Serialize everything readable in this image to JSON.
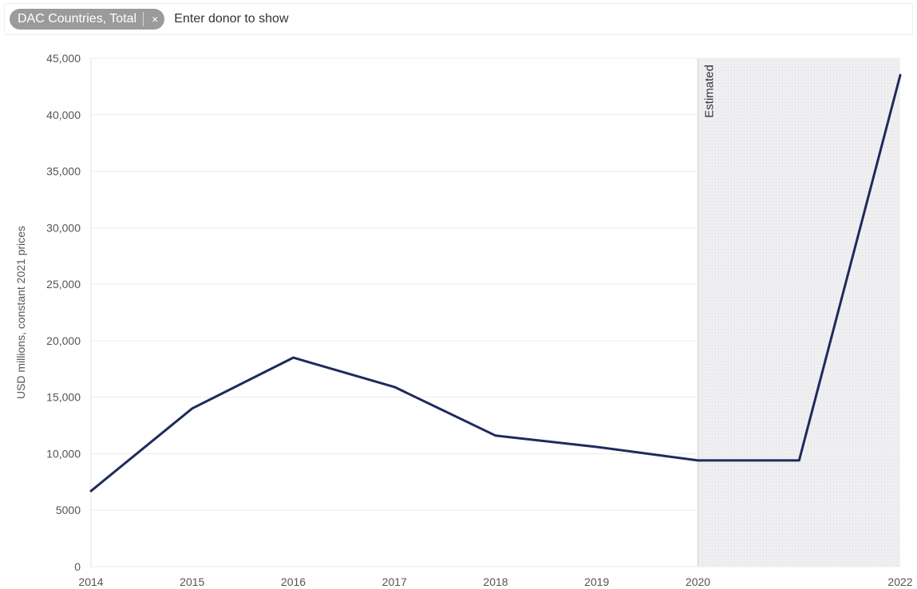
{
  "filter": {
    "selected_chip": "DAC Countries, Total",
    "chip_close": "×",
    "placeholder": "Enter donor to show"
  },
  "chart_data": {
    "type": "line",
    "title": "",
    "xlabel": "",
    "ylabel": "USD millions, constant 2021 prices",
    "x": [
      2014,
      2015,
      2016,
      2017,
      2018,
      2019,
      2020,
      2021,
      2022
    ],
    "x_tick_labels": [
      "2014",
      "2015",
      "2016",
      "2017",
      "2018",
      "2019",
      "2020",
      "2022"
    ],
    "x_tick_values": [
      2014,
      2015,
      2016,
      2017,
      2018,
      2019,
      2020,
      2022
    ],
    "y_tick_labels": [
      "0",
      "5000",
      "10,000",
      "15,000",
      "20,000",
      "25,000",
      "30,000",
      "35,000",
      "40,000",
      "45,000"
    ],
    "y_tick_values": [
      0,
      5000,
      10000,
      15000,
      20000,
      25000,
      30000,
      35000,
      40000,
      45000
    ],
    "xlim": [
      2014,
      2022
    ],
    "ylim": [
      0,
      45000
    ],
    "grid": true,
    "series": [
      {
        "values": [
          6700,
          14000,
          18500,
          15900,
          11600,
          10600,
          9400,
          9400,
          43500
        ],
        "color": "#1f2a5c"
      }
    ],
    "shaded_region": {
      "from": 2020,
      "to": 2022,
      "label": "Estimated",
      "color": "#e9e9ec"
    }
  }
}
